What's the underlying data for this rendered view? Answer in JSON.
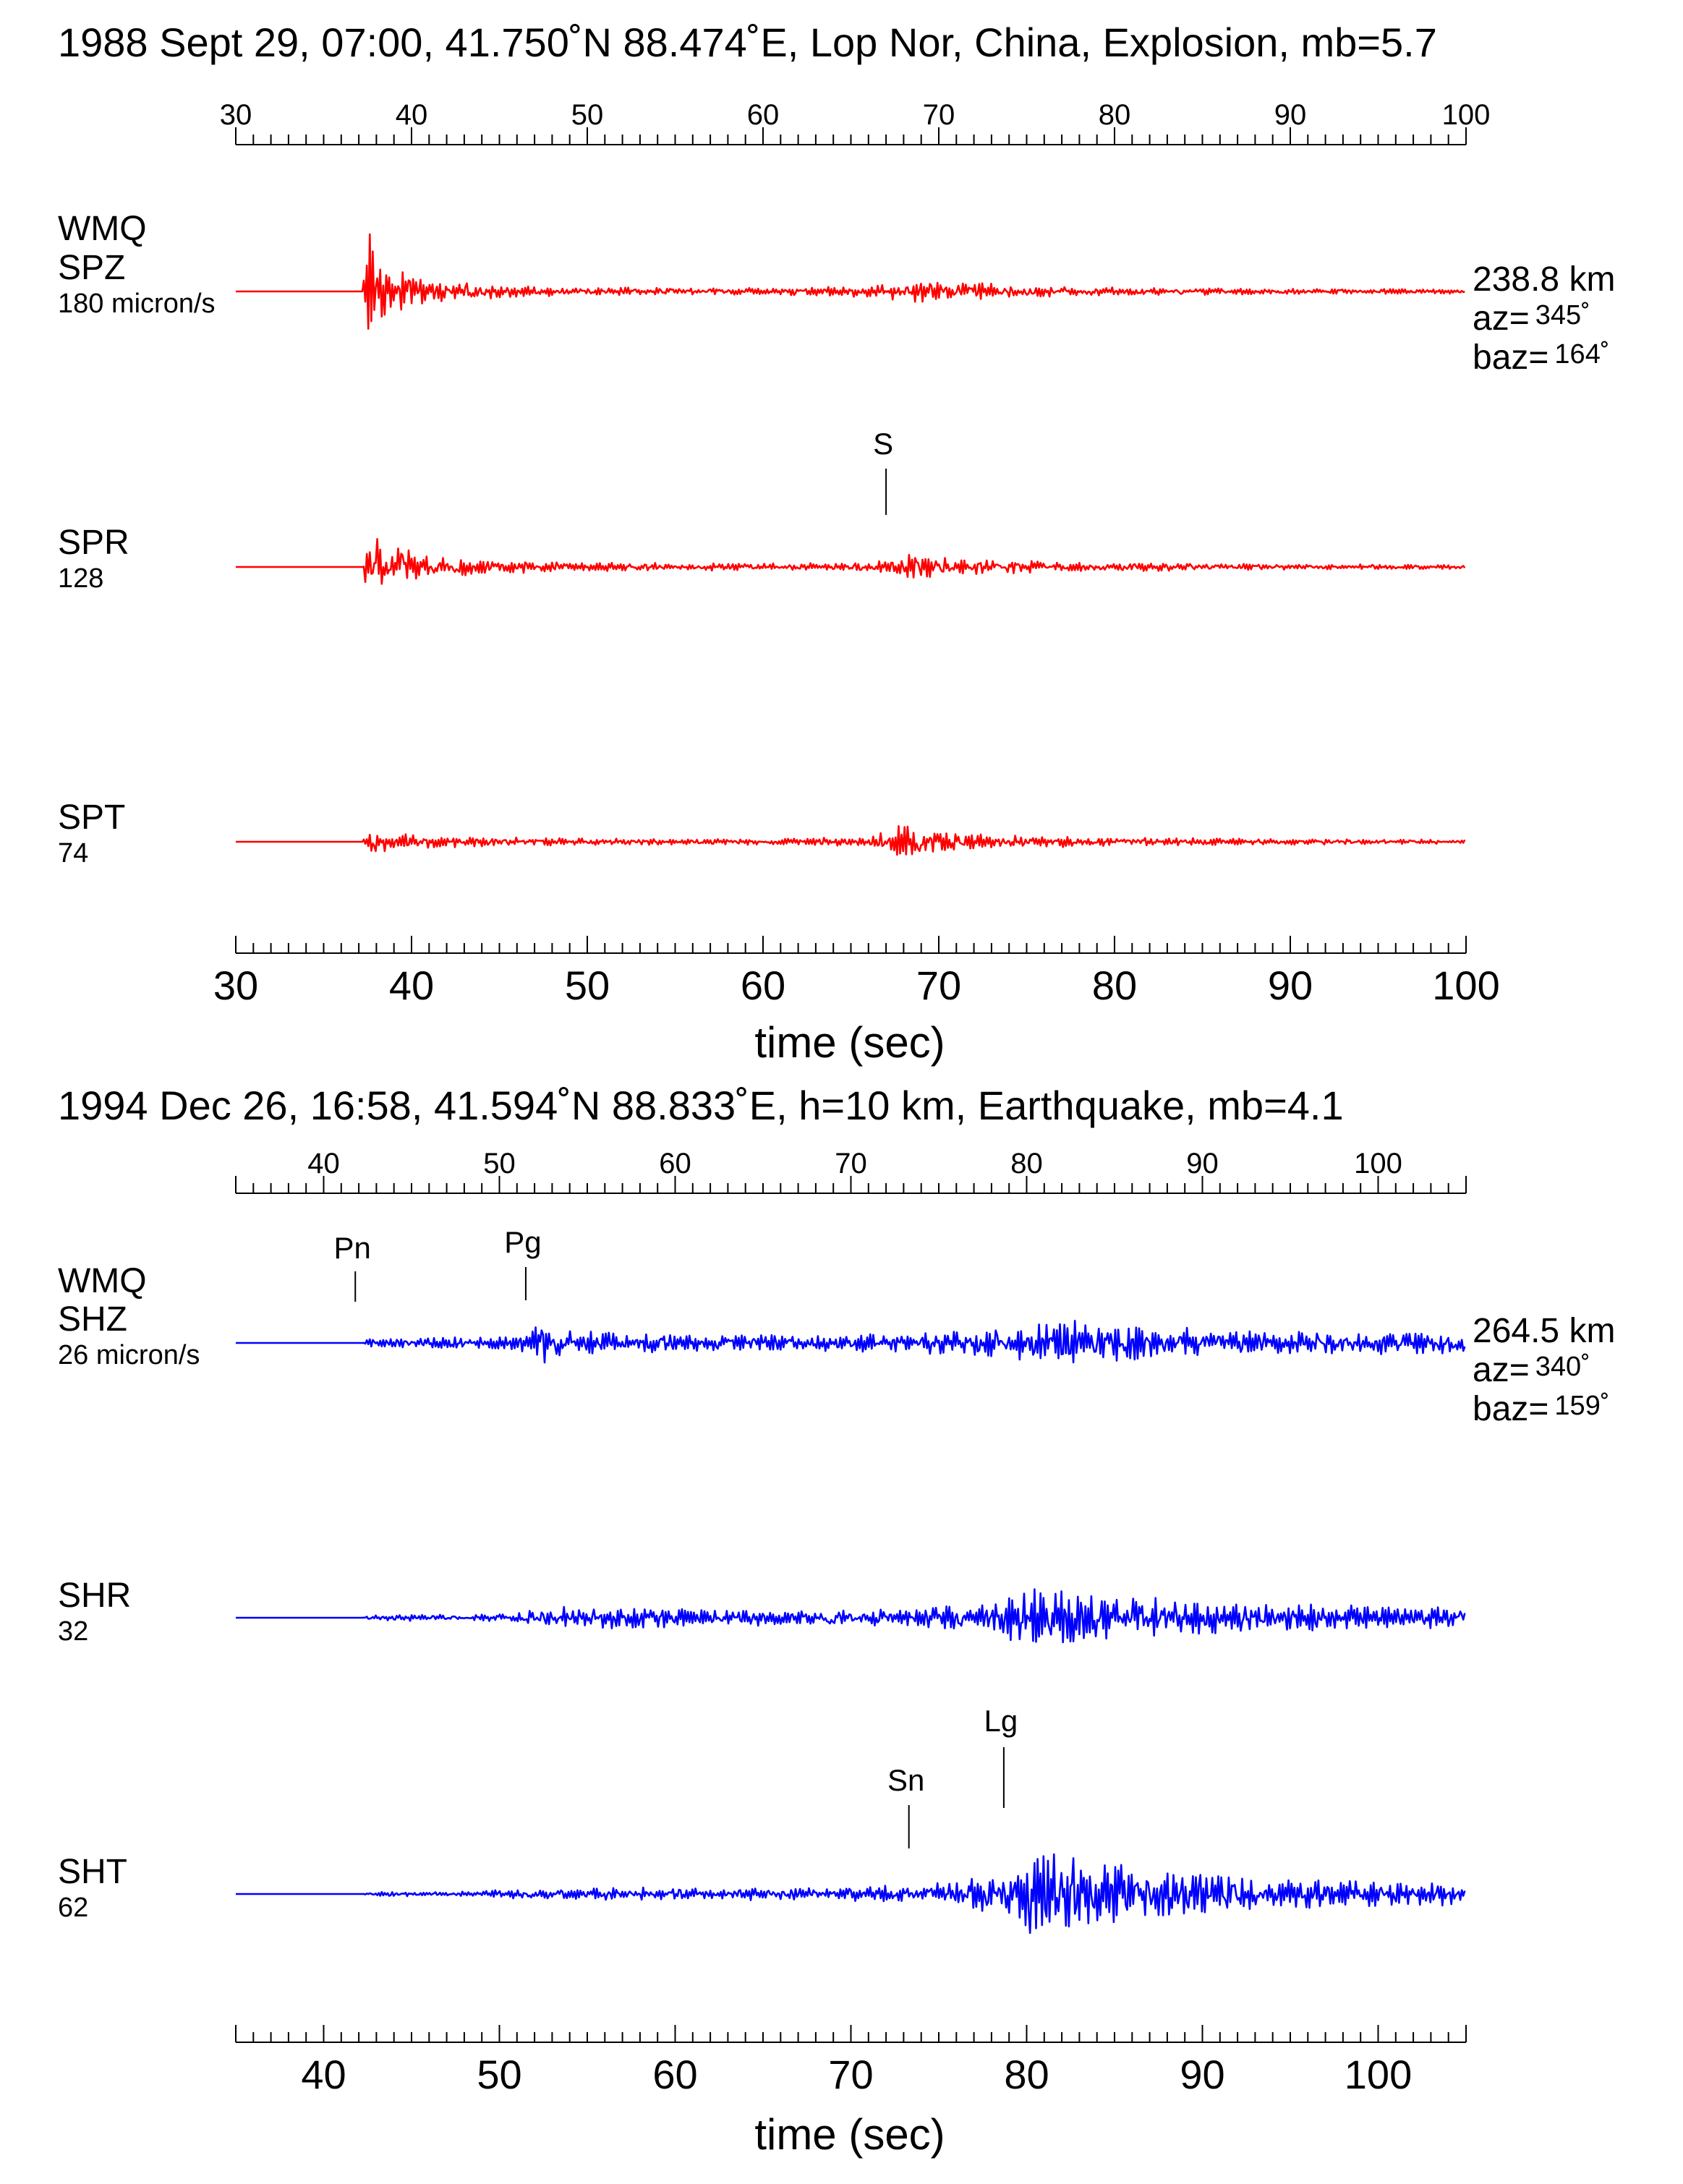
{
  "chart_data": [
    {
      "type": "line",
      "title": "1988 Sept 29, 07:00, 41.750˚N 88.474˚E, Lop Nor, China, Explosion, mb=5.7",
      "xlabel": "time (sec)",
      "xlim": [
        30,
        100
      ],
      "xticks": [
        30,
        40,
        50,
        60,
        70,
        80,
        90,
        100
      ],
      "station": "WMQ",
      "trace_color": "#ff0000",
      "distance": "238.8 km",
      "az_label": "az=",
      "az_value": "345˚",
      "baz_label": "baz=",
      "baz_value": "164˚",
      "onset_time": 37.2,
      "series": [
        {
          "name": "SPZ",
          "amp_label": "180 micron/s",
          "envelope": [
            [
              37.2,
              0
            ],
            [
              37.6,
              92
            ],
            [
              38.2,
              52
            ],
            [
              39.0,
              33
            ],
            [
              41.0,
              17
            ],
            [
              45.0,
              9
            ],
            [
              50.0,
              6
            ],
            [
              60.0,
              5
            ],
            [
              66.0,
              8
            ],
            [
              68.5,
              15
            ],
            [
              70.0,
              14
            ],
            [
              73.0,
              11
            ],
            [
              76.0,
              8
            ],
            [
              80.0,
              6
            ],
            [
              90.0,
              4
            ],
            [
              100.0,
              3
            ]
          ],
          "phases": []
        },
        {
          "name": "SPR",
          "amp_label": "128",
          "envelope": [
            [
              37.2,
              0
            ],
            [
              37.6,
              58
            ],
            [
              38.2,
              42
            ],
            [
              39.0,
              33
            ],
            [
              41.0,
              18
            ],
            [
              45.0,
              10
            ],
            [
              50.0,
              6
            ],
            [
              60.0,
              5
            ],
            [
              66.0,
              6
            ],
            [
              67.5,
              14
            ],
            [
              68.6,
              24
            ],
            [
              70.0,
              14
            ],
            [
              73.0,
              11
            ],
            [
              76.0,
              9
            ],
            [
              80.0,
              6
            ],
            [
              90.0,
              4
            ],
            [
              100.0,
              3
            ]
          ],
          "phases": [
            {
              "label": "S",
              "t": 67.0
            }
          ]
        },
        {
          "name": "SPT",
          "amp_label": "74",
          "envelope": [
            [
              37.2,
              0
            ],
            [
              37.6,
              16
            ],
            [
              38.5,
              18
            ],
            [
              39.5,
              14
            ],
            [
              41.0,
              9
            ],
            [
              45.0,
              6
            ],
            [
              50.0,
              5
            ],
            [
              60.0,
              4
            ],
            [
              66.0,
              7
            ],
            [
              68.3,
              28
            ],
            [
              70.0,
              14
            ],
            [
              73.0,
              11
            ],
            [
              76.0,
              9
            ],
            [
              80.0,
              6
            ],
            [
              90.0,
              4
            ],
            [
              100.0,
              3
            ]
          ],
          "phases": []
        }
      ]
    },
    {
      "type": "line",
      "title": "1994 Dec 26, 16:58, 41.594˚N 88.833˚E, h=10 km, Earthquake, mb=4.1",
      "xlabel": "time (sec)",
      "xlim": [
        35,
        105
      ],
      "xticks": [
        40,
        50,
        60,
        70,
        80,
        90,
        100
      ],
      "station": "WMQ",
      "trace_color": "#0000ff",
      "distance": "264.5 km",
      "az_label": "az=",
      "az_value": "340˚",
      "baz_label": "baz=",
      "baz_value": "159˚",
      "onset_time": 42.2,
      "series": [
        {
          "name": "SHZ",
          "amp_label": "26 micron/s",
          "envelope": [
            [
              42.2,
              0
            ],
            [
              42.5,
              7
            ],
            [
              45.0,
              7
            ],
            [
              50.0,
              9
            ],
            [
              51.5,
              14
            ],
            [
              52.3,
              34
            ],
            [
              54.0,
              18
            ],
            [
              58.0,
              14
            ],
            [
              62.0,
              12
            ],
            [
              70.0,
              12
            ],
            [
              75.0,
              16
            ],
            [
              78.0,
              20
            ],
            [
              80.0,
              26
            ],
            [
              83.0,
              34
            ],
            [
              86.0,
              28
            ],
            [
              90.0,
              22
            ],
            [
              95.0,
              18
            ],
            [
              100.0,
              16
            ],
            [
              105.0,
              14
            ]
          ],
          "phases": [
            {
              "label": "Pn",
              "t": 41.8
            },
            {
              "label": "Pg",
              "t": 51.5
            }
          ]
        },
        {
          "name": "SHR",
          "amp_label": "32",
          "envelope": [
            [
              42.2,
              0
            ],
            [
              42.5,
              4
            ],
            [
              48.0,
              5
            ],
            [
              51.0,
              7
            ],
            [
              52.5,
              18
            ],
            [
              56.0,
              16
            ],
            [
              62.0,
              12
            ],
            [
              70.0,
              11
            ],
            [
              74.0,
              14
            ],
            [
              78.0,
              22
            ],
            [
              80.0,
              44
            ],
            [
              83.0,
              38
            ],
            [
              86.0,
              30
            ],
            [
              90.0,
              24
            ],
            [
              95.0,
              20
            ],
            [
              100.0,
              16
            ],
            [
              105.0,
              14
            ]
          ],
          "phases": []
        },
        {
          "name": "SHT",
          "amp_label": "62",
          "envelope": [
            [
              42.2,
              0
            ],
            [
              42.5,
              3
            ],
            [
              48.0,
              4
            ],
            [
              52.0,
              7
            ],
            [
              56.0,
              9
            ],
            [
              62.0,
              9
            ],
            [
              70.0,
              10
            ],
            [
              73.0,
              14
            ],
            [
              76.0,
              20
            ],
            [
              79.5,
              38
            ],
            [
              80.0,
              92
            ],
            [
              82.0,
              58
            ],
            [
              84.0,
              48
            ],
            [
              88.0,
              36
            ],
            [
              92.0,
              26
            ],
            [
              96.0,
              20
            ],
            [
              100.0,
              18
            ],
            [
              105.0,
              16
            ]
          ],
          "phases": [
            {
              "label": "Sn",
              "t": 73.3
            },
            {
              "label": "Lg",
              "t": 78.7
            }
          ]
        }
      ]
    }
  ]
}
